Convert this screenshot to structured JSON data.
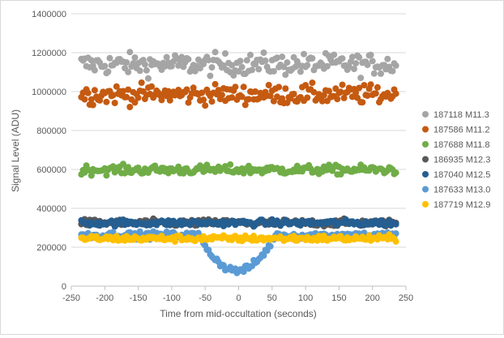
{
  "chart_data": {
    "type": "scatter",
    "title": "",
    "xlabel": "Time from mid-occultation (seconds)",
    "ylabel": "Signal Level (ADU)",
    "xlim": [
      -250,
      250
    ],
    "ylim": [
      0,
      1400000
    ],
    "x_ticks": [
      -250,
      -200,
      -150,
      -100,
      -50,
      0,
      50,
      100,
      150,
      200,
      250
    ],
    "y_ticks": [
      0,
      200000,
      400000,
      600000,
      800000,
      1000000,
      1200000,
      1400000
    ],
    "x_tick_labels": [
      "-250",
      "-200",
      "-150",
      "-100",
      "-50",
      "0",
      "50",
      "100",
      "150",
      "200",
      "250"
    ],
    "y_tick_labels": [
      "0",
      "200000",
      "400000",
      "600000",
      "800000",
      "1000000",
      "1200000",
      "1400000"
    ],
    "grid": "horizontal",
    "legend_position": "right",
    "x_range": [
      -235,
      235
    ],
    "x_step": 2.5,
    "series": [
      {
        "name": "187118 M11.3",
        "color": "#a5a5a5",
        "mean": 1140000,
        "noise": 28000
      },
      {
        "name": "187586 M11.2",
        "color": "#c55a11",
        "mean": 985000,
        "noise": 25000
      },
      {
        "name": "187688 M11.8",
        "color": "#70ad47",
        "mean": 598000,
        "noise": 12000
      },
      {
        "name": "186935 M12.3",
        "color": "#595959",
        "mean": 325000,
        "noise": 9000
      },
      {
        "name": "187040 M12.5",
        "color": "#255e91",
        "mean": 325000,
        "noise": 8000
      },
      {
        "name": "187633 M13.0",
        "color": "#5b9bd5",
        "mean": 262000,
        "noise": 9000,
        "dip": {
          "center": -2,
          "half_width": 57,
          "min": 80000
        }
      },
      {
        "name": "187719 M12.9",
        "color": "#ffc000",
        "mean": 245000,
        "noise": 8000
      }
    ]
  }
}
